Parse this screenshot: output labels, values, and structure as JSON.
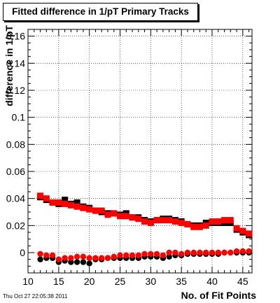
{
  "title": "Fitted difference in 1/pT Primary Tracks",
  "footer_timestamp": "Thu Oct 27 22:05:38 2011",
  "chart_data": {
    "type": "scatter",
    "title": "Fitted difference in 1/pT Primary Tracks",
    "xlabel": "No. of Fit Points",
    "ylabel": "difference in 1/pT",
    "xlim": [
      10,
      46.5
    ],
    "ylim": [
      -0.015,
      0.165
    ],
    "xticks": [
      10,
      15,
      20,
      25,
      30,
      35,
      40,
      45
    ],
    "xtick_labels": [
      "10",
      "15",
      "20",
      "25",
      "30",
      "35",
      "40",
      "45"
    ],
    "yticks": [
      0,
      0.02,
      0.04,
      0.06,
      0.08,
      0.1,
      0.12,
      0.14,
      0.16
    ],
    "ytick_labels": [
      "0",
      "0.02",
      "0.04",
      "0.06",
      "0.08",
      "0.1",
      "0.12",
      "0.14",
      "0.16"
    ],
    "grid": true,
    "colors": {
      "black_series": "#000000",
      "red_series": "#ff0000"
    },
    "x": [
      12,
      13,
      14,
      15,
      16,
      17,
      18,
      19,
      20,
      21,
      22,
      23,
      24,
      25,
      26,
      27,
      28,
      29,
      30,
      31,
      32,
      33,
      34,
      35,
      36,
      37,
      38,
      39,
      40,
      41,
      42,
      43,
      44,
      45,
      46
    ],
    "series": [
      {
        "marker": "square",
        "color": "#000000",
        "values": [
          0.041,
          0.039,
          0.037,
          0.036,
          0.039,
          0.036,
          0.037,
          0.034,
          0.033,
          0.031,
          0.03,
          0.029,
          0.029,
          0.028,
          0.029,
          0.026,
          0.026,
          0.024,
          0.023,
          0.024,
          0.025,
          0.025,
          0.024,
          0.023,
          0.021,
          0.02,
          0.02,
          0.022,
          0.022,
          0.022,
          0.022,
          0.022,
          0.017,
          0.015,
          0.013
        ]
      },
      {
        "marker": "square",
        "color": "#ff0000",
        "values": [
          0.042,
          0.04,
          0.037,
          0.037,
          0.036,
          0.035,
          0.034,
          0.033,
          0.032,
          0.031,
          0.031,
          0.028,
          0.029,
          0.027,
          0.027,
          0.026,
          0.025,
          0.023,
          0.022,
          0.024,
          0.024,
          0.024,
          0.023,
          0.022,
          0.021,
          0.019,
          0.019,
          0.02,
          0.023,
          0.023,
          0.024,
          0.024,
          0.018,
          0.016,
          0.014
        ]
      },
      {
        "marker": "circle",
        "color": "#000000",
        "values": [
          -0.005,
          -0.004,
          -0.004,
          -0.007,
          -0.006,
          -0.007,
          -0.007,
          -0.007,
          -0.008,
          -0.005,
          -0.005,
          -0.004,
          -0.004,
          -0.004,
          -0.004,
          -0.004,
          -0.004,
          -0.003,
          -0.003,
          -0.003,
          -0.004,
          -0.003,
          -0.002,
          -0.002,
          -0.001,
          -0.001,
          -0.001,
          -0.001,
          -0.001,
          -0.001,
          0.0,
          0.0,
          0.0,
          0.0,
          0.0
        ]
      },
      {
        "marker": "circle",
        "color": "#ff0000",
        "values": [
          -0.001,
          -0.002,
          -0.002,
          -0.005,
          -0.004,
          -0.004,
          -0.003,
          -0.003,
          -0.004,
          -0.004,
          -0.004,
          -0.004,
          -0.003,
          -0.002,
          -0.002,
          -0.002,
          -0.002,
          -0.001,
          -0.001,
          -0.001,
          -0.002,
          0.0,
          0.0,
          -0.001,
          0.0,
          0.0,
          0.0,
          0.0,
          0.0,
          0.0,
          0.0,
          0.0,
          0.001,
          0.001,
          0.001
        ]
      }
    ]
  }
}
